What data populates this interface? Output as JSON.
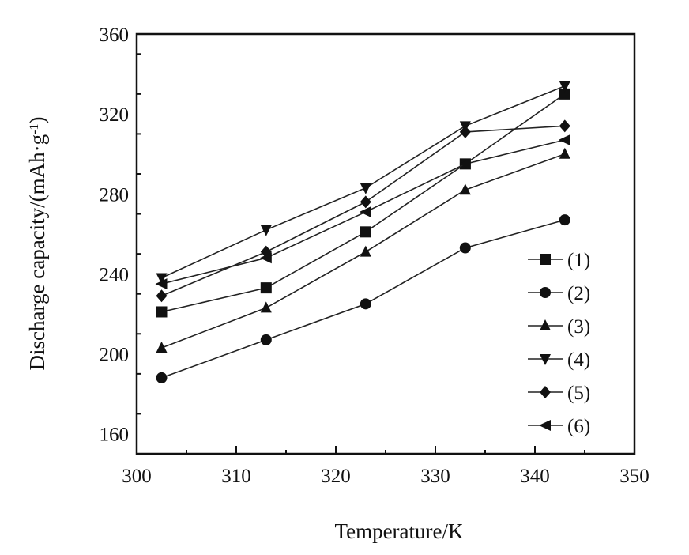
{
  "chart_data": {
    "type": "line",
    "title": "",
    "xlabel": "Temperature/K",
    "ylabel": "Discharge capacity/(mAh·g",
    "ylabel_sup": "-1",
    "ylabel_end": ")",
    "xlim": [
      300,
      350
    ],
    "ylim": [
      150,
      360
    ],
    "xticks": [
      300,
      310,
      320,
      330,
      340,
      350
    ],
    "yticks": [
      160,
      200,
      240,
      280,
      320,
      360
    ],
    "grid": false,
    "legend_position": "right",
    "x": [
      302.5,
      313,
      323,
      333,
      343
    ],
    "series": [
      {
        "name": "(1)",
        "marker": "square",
        "values": [
          221,
          233,
          261,
          295,
          330
        ]
      },
      {
        "name": "(2)",
        "marker": "circle",
        "values": [
          188,
          207,
          225,
          253,
          267
        ]
      },
      {
        "name": "(3)",
        "marker": "triangle-up",
        "values": [
          203,
          223,
          251,
          282,
          300
        ]
      },
      {
        "name": "(4)",
        "marker": "triangle-down",
        "values": [
          238,
          262,
          283,
          314,
          334
        ]
      },
      {
        "name": "(5)",
        "marker": "diamond",
        "values": [
          229,
          251,
          276,
          311,
          314
        ]
      },
      {
        "name": "(6)",
        "marker": "triangle-left",
        "values": [
          235,
          248,
          271,
          295,
          307
        ]
      }
    ]
  },
  "colors": {
    "line": "#222222",
    "marker": "#111111",
    "axis": "#111111"
  }
}
